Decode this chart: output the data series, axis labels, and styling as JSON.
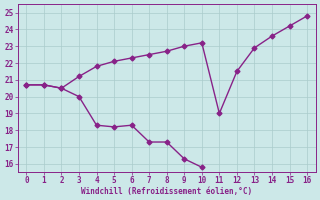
{
  "line1_x": [
    0,
    1,
    2,
    3,
    4,
    5,
    6,
    7,
    8,
    9,
    10
  ],
  "line1_y": [
    20.7,
    20.7,
    20.5,
    20.0,
    18.3,
    18.2,
    18.3,
    17.3,
    17.3,
    16.3,
    15.8
  ],
  "line2_x": [
    0,
    1,
    2,
    3,
    4,
    5,
    6,
    7,
    8,
    9,
    10,
    11,
    12,
    13,
    14,
    15,
    16
  ],
  "line2_y": [
    20.7,
    20.7,
    20.5,
    21.2,
    21.8,
    22.1,
    22.3,
    22.5,
    22.7,
    23.0,
    23.2,
    19.0,
    21.5,
    22.9,
    23.6,
    24.2,
    24.8
  ],
  "line_color": "#882288",
  "bg_color": "#cce8e8",
  "grid_color": "#aacccc",
  "xlabel": "Windchill (Refroidissement éolien,°C)",
  "xlim": [
    -0.5,
    16.5
  ],
  "ylim": [
    15.5,
    25.5
  ],
  "xticks": [
    0,
    1,
    2,
    3,
    4,
    5,
    6,
    7,
    8,
    9,
    10,
    11,
    12,
    13,
    14,
    15,
    16
  ],
  "yticks": [
    16,
    17,
    18,
    19,
    20,
    21,
    22,
    23,
    24,
    25
  ],
  "marker": "D",
  "markersize": 2.5,
  "linewidth": 1.0
}
